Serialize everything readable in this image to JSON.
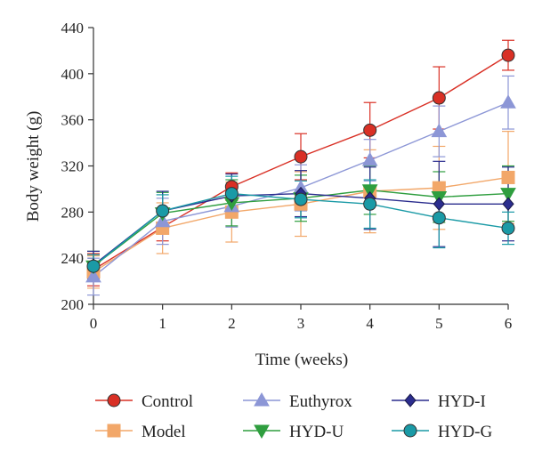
{
  "chart_data": {
    "type": "line",
    "title": "",
    "xlabel": "Time (weeks)",
    "ylabel": "Body weight (g)",
    "x": [
      0,
      1,
      2,
      3,
      4,
      5,
      6
    ],
    "xlim": [
      0,
      6
    ],
    "ylim": [
      200,
      440
    ],
    "xticks": [
      "0",
      "1",
      "2",
      "3",
      "4",
      "5",
      "6"
    ],
    "yticks": [
      "200",
      "240",
      "280",
      "320",
      "360",
      "400",
      "440"
    ],
    "grid": false,
    "legend_position": "bottom",
    "series": [
      {
        "name": "Control",
        "color": "#d93025",
        "marker": "circle",
        "values": [
          230,
          267,
          302,
          328,
          351,
          379,
          416
        ],
        "errors": [
          14,
          12,
          12,
          20,
          24,
          27,
          13
        ]
      },
      {
        "name": "Model",
        "color": "#f2a769",
        "marker": "square",
        "values": [
          228,
          266,
          280,
          287,
          298,
          301,
          310
        ],
        "errors": [
          14,
          22,
          26,
          28,
          36,
          36,
          40
        ]
      },
      {
        "name": "Euthyrox",
        "color": "#8c96d6",
        "marker": "triangle-up",
        "values": [
          224,
          272,
          285,
          301,
          325,
          350,
          375
        ],
        "errors": [
          16,
          20,
          18,
          20,
          18,
          22,
          23
        ]
      },
      {
        "name": "HYD-U",
        "color": "#2f9e3f",
        "marker": "triangle-down",
        "values": [
          233,
          279,
          288,
          292,
          299,
          293,
          296
        ],
        "errors": [
          13,
          18,
          20,
          20,
          21,
          22,
          24
        ]
      },
      {
        "name": "HYD-I",
        "color": "#2b2d8e",
        "marker": "diamond",
        "values": [
          234,
          281,
          294,
          296,
          292,
          287,
          287
        ],
        "errors": [
          12,
          17,
          19,
          20,
          27,
          37,
          32
        ]
      },
      {
        "name": "HYD-G",
        "color": "#1a9aa6",
        "marker": "circle",
        "values": [
          233,
          281,
          296,
          291,
          287,
          275,
          266
        ],
        "errors": [
          10,
          14,
          15,
          16,
          21,
          26,
          14
        ]
      }
    ]
  }
}
